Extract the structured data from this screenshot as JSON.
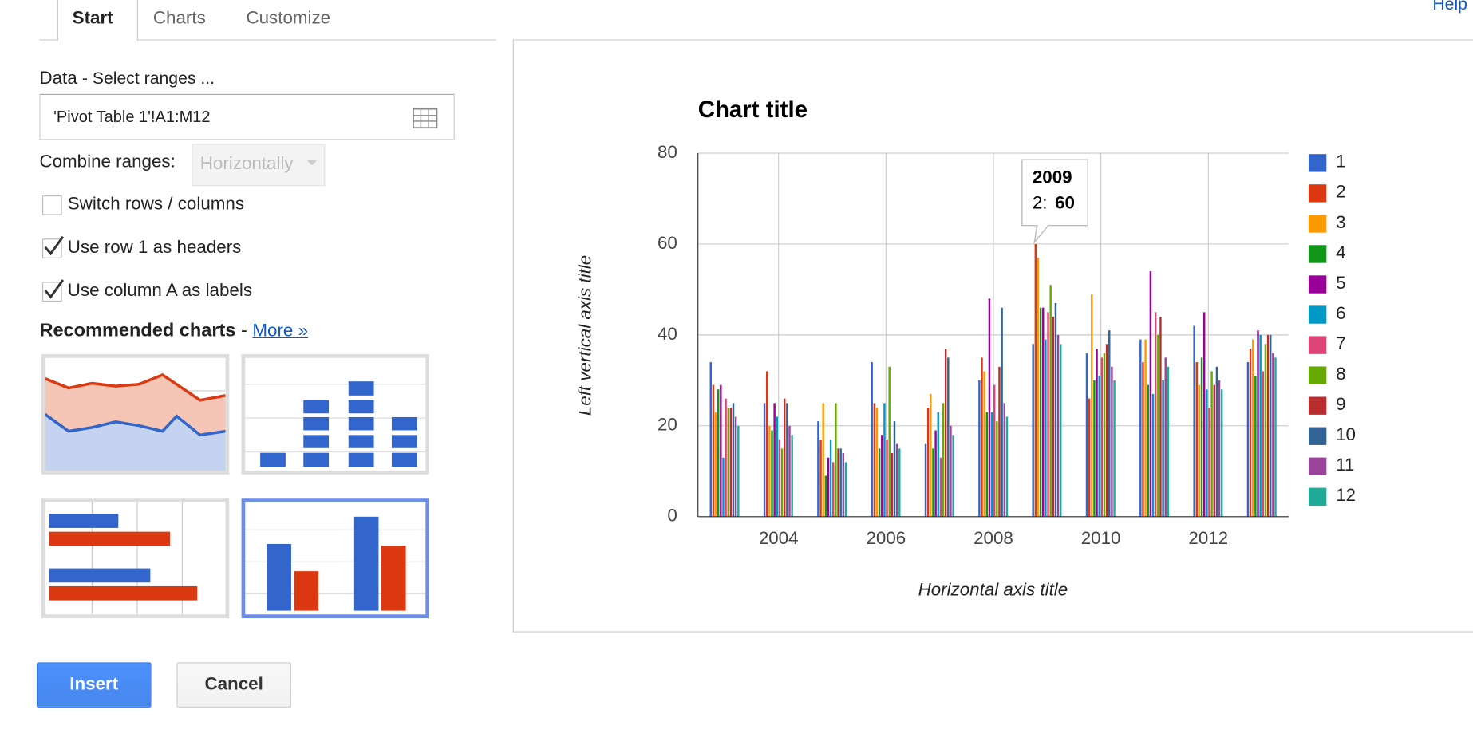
{
  "tabs": [
    "Start",
    "Charts",
    "Customize"
  ],
  "help": "Help",
  "data_section": {
    "label": "Data",
    "hint": "- Select ranges ...",
    "range": "'Pivot Table 1'!A1:M12",
    "combine_label": "Combine ranges:",
    "combine_value": "Horizontally",
    "options": [
      "Switch rows / columns",
      "Use row 1 as headers",
      "Use column A as labels"
    ]
  },
  "recommended": {
    "title": "Recommended charts",
    "separator": "-",
    "more": "More »"
  },
  "buttons": [
    "Insert",
    "Cancel"
  ],
  "chart_data": {
    "type": "bar",
    "title": "Chart title",
    "x_label": "Horizontal axis title",
    "y_label": "Left vertical axis title",
    "x": [
      2003,
      2004,
      2005,
      2006,
      2007,
      2008,
      2009,
      2010,
      2011,
      2012,
      2013
    ],
    "xlim": [
      2002.5,
      2013.5
    ],
    "xticks": [
      2004,
      2006,
      2008,
      2010,
      2012
    ],
    "ylim": [
      0,
      80
    ],
    "yticks": [
      0,
      20,
      40,
      60,
      80
    ],
    "grid": true,
    "legend": "right",
    "series": [
      {
        "name": "1",
        "color": "#3366cc",
        "values": [
          34,
          25,
          21,
          34,
          16,
          30,
          38,
          36,
          39,
          42,
          34
        ]
      },
      {
        "name": "2",
        "color": "#dc3912",
        "values": [
          29,
          32,
          17,
          25,
          24,
          35,
          60,
          26,
          34,
          34,
          37
        ]
      },
      {
        "name": "3",
        "color": "#ff9900",
        "values": [
          23,
          20,
          25,
          24,
          27,
          32,
          57,
          49,
          39,
          29,
          39
        ]
      },
      {
        "name": "4",
        "color": "#109618",
        "values": [
          28,
          19,
          9,
          15,
          15,
          23,
          46,
          30,
          29,
          35,
          31
        ]
      },
      {
        "name": "5",
        "color": "#990099",
        "values": [
          29,
          25,
          13,
          18,
          19,
          48,
          46,
          37,
          54,
          45,
          41
        ]
      },
      {
        "name": "6",
        "color": "#0099c6",
        "values": [
          13,
          22,
          17,
          25,
          23,
          23,
          39,
          31,
          27,
          28,
          40
        ]
      },
      {
        "name": "7",
        "color": "#dd4477",
        "values": [
          26,
          17,
          12,
          17,
          13,
          29,
          45,
          35,
          45,
          24,
          32
        ]
      },
      {
        "name": "8",
        "color": "#66aa00",
        "values": [
          24,
          15,
          25,
          33,
          25,
          21,
          51,
          36,
          40,
          32,
          38
        ]
      },
      {
        "name": "9",
        "color": "#b82e2e",
        "values": [
          24,
          26,
          15,
          14,
          37,
          33,
          44,
          38,
          44,
          29,
          40
        ]
      },
      {
        "name": "10",
        "color": "#316395",
        "values": [
          25,
          25,
          15,
          21,
          35,
          46,
          47,
          41,
          30,
          33,
          40
        ]
      },
      {
        "name": "11",
        "color": "#994499",
        "values": [
          22,
          20,
          14,
          16,
          20,
          25,
          40,
          33,
          35,
          30,
          36
        ]
      },
      {
        "name": "12",
        "color": "#22aa99",
        "values": [
          20,
          18,
          12,
          15,
          18,
          22,
          38,
          30,
          33,
          28,
          35
        ]
      }
    ],
    "tooltip": {
      "title": "2009",
      "label": "2:",
      "value": 60
    }
  }
}
